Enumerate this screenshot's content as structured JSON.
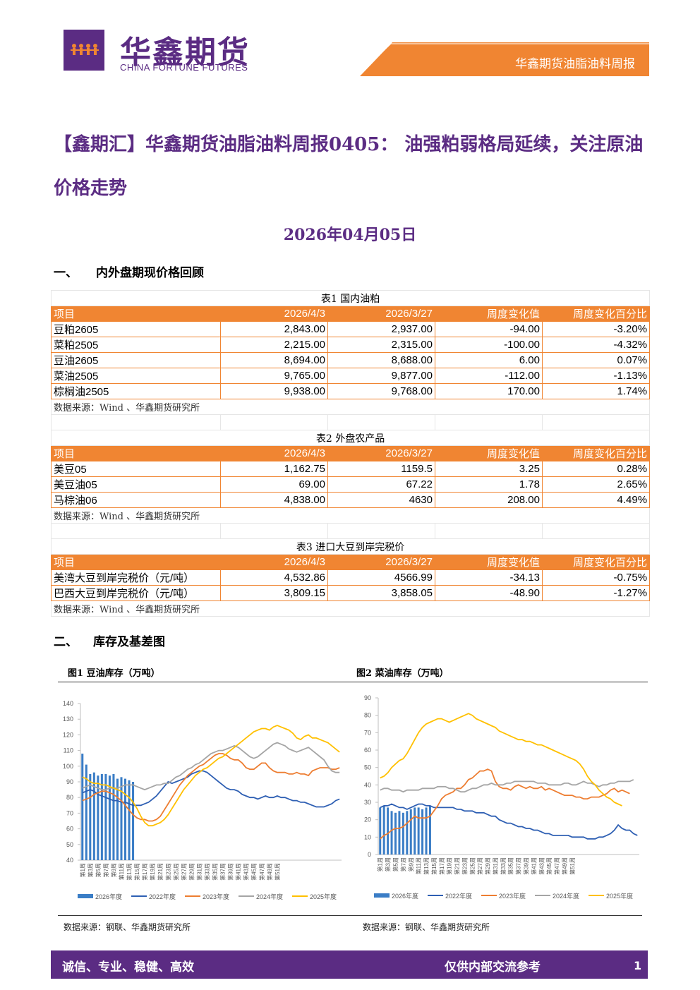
{
  "header": {
    "logo_cn": "华鑫期货",
    "logo_en": "CHINA FORTUNE FUTURES",
    "report_name": "华鑫期货油脂油料周报",
    "brand_color": "#5b2c83",
    "accent_color": "#f08532"
  },
  "title": "【鑫期汇】华鑫期货油脂油料周报0405： 油强粕弱格局延续，关注原油价格走势",
  "date": "2026年04月05日",
  "section1": {
    "num": "一、",
    "title": "内外盘期现价格回顾"
  },
  "section2": {
    "num": "二、",
    "title": "库存及基差图"
  },
  "tables": [
    {
      "caption": "表1 国内油粕",
      "headers": [
        "项目",
        "2026/4/3",
        "2026/3/27",
        "周度变化值",
        "周度变化百分比"
      ],
      "rows": [
        [
          "豆粕2605",
          "2,843.00",
          "2,937.00",
          "-94.00",
          "-3.20%"
        ],
        [
          "菜粕2505",
          "2,215.00",
          "2,315.00",
          "-100.00",
          "-4.32%"
        ],
        [
          "豆油2605",
          "8,694.00",
          "8,688.00",
          "6.00",
          "0.07%"
        ],
        [
          "菜油2505",
          "9,765.00",
          "9,877.00",
          "-112.00",
          "-1.13%"
        ],
        [
          "棕榈油2505",
          "9,938.00",
          "9,768.00",
          "170.00",
          "1.74%"
        ]
      ],
      "source": "数据来源：Wind 、华鑫期货研究所"
    },
    {
      "caption": "表2 外盘农产品",
      "headers": [
        "项目",
        "2026/4/3",
        "2026/3/27",
        "周度变化值",
        "周度变化百分比"
      ],
      "rows": [
        [
          "美豆05",
          "1,162.75",
          "1159.5",
          "3.25",
          "0.28%"
        ],
        [
          "美豆油05",
          "69.00",
          "67.22",
          "1.78",
          "2.65%"
        ],
        [
          "马棕油06",
          "4,838.00",
          "4630",
          "208.00",
          "4.49%"
        ]
      ],
      "source": "数据来源：Wind 、华鑫期货研究所"
    },
    {
      "caption": "表3 进口大豆到岸完税价",
      "headers": [
        "项目",
        "2026/4/3",
        "2026/3/27",
        "周度变化值",
        "周度变化百分比"
      ],
      "rows": [
        [
          "美湾大豆到岸完税价（元/吨）",
          "4,532.86",
          "4566.99",
          "-34.13",
          "-0.75%"
        ],
        [
          "巴西大豆到岸完税价（元/吨）",
          "3,809.15",
          "3,858.05",
          "-48.90",
          "-1.27%"
        ]
      ],
      "source": "数据来源：Wind 、华鑫期货研究所"
    }
  ],
  "charts_meta": {
    "fig1_title": "图1 豆油库存（万吨）",
    "fig2_title": "图2 菜油库存（万吨）",
    "fig1_source": "数据来源：钢联、华鑫期货研究所",
    "fig2_source": "数据来源：钢联、华鑫期货研究所"
  },
  "chart_data": [
    {
      "type": "line",
      "title": "图1 豆油库存（万吨）",
      "ylim": [
        40,
        140
      ],
      "yticks": [
        40,
        50,
        60,
        70,
        80,
        90,
        100,
        110,
        120,
        130,
        140
      ],
      "x_ticks": [
        "第1周",
        "第3周",
        "第5周",
        "第7周",
        "第9周",
        "第11周",
        "第13周",
        "第15周",
        "第17周",
        "第19周",
        "第21周",
        "第23周",
        "第25周",
        "第27周",
        "第29周",
        "第31周",
        "第33周",
        "第35周",
        "第37周",
        "第39周",
        "第41周",
        "第43周",
        "第45周",
        "第47周",
        "第49周",
        "第51周"
      ],
      "legend_position": "bottom",
      "series": [
        {
          "name": "2026年度",
          "kind": "bar",
          "color": "#3a7dc6",
          "values": [
            108,
            101,
            95,
            96,
            94,
            95,
            95,
            94,
            95,
            92,
            93,
            92,
            91,
            90
          ]
        },
        {
          "name": "2022年度",
          "color": "#2e5fb3",
          "values": [
            83,
            84,
            85,
            84,
            82,
            81,
            80,
            79,
            78,
            78,
            77,
            77,
            76,
            75,
            75,
            75,
            76,
            77,
            79,
            81,
            84,
            87,
            90,
            89,
            90,
            91,
            92,
            93,
            95,
            96,
            97,
            97,
            96,
            94,
            92,
            90,
            88,
            86,
            85,
            85,
            84,
            82,
            81,
            80,
            80,
            79,
            80,
            81,
            80,
            80,
            81,
            80,
            80,
            79,
            78,
            78,
            77,
            77,
            76,
            75,
            74,
            74,
            74,
            75,
            76,
            78,
            79
          ]
        },
        {
          "name": "2023年度",
          "color": "#ed7d31",
          "values": [
            78,
            79,
            80,
            82,
            83,
            84,
            84,
            83,
            82,
            80,
            78,
            75,
            72,
            69,
            67,
            66,
            66,
            65,
            65,
            66,
            68,
            72,
            76,
            80,
            84,
            88,
            91,
            94,
            96,
            98,
            100,
            101,
            103,
            105,
            107,
            108,
            108,
            107,
            105,
            104,
            104,
            102,
            99,
            98,
            98,
            100,
            102,
            102,
            99,
            97,
            96,
            96,
            96,
            95,
            95,
            96,
            95,
            95,
            94,
            97,
            98,
            99,
            99,
            99,
            98,
            98,
            99
          ]
        },
        {
          "name": "2024年度",
          "color": "#a5a5a5",
          "values": [
            86,
            87,
            88,
            87,
            86,
            85,
            85,
            86,
            86,
            86,
            87,
            88,
            88,
            88,
            87,
            86,
            85,
            86,
            87,
            88,
            88,
            89,
            89,
            91,
            93,
            94,
            96,
            98,
            99,
            101,
            102,
            104,
            106,
            108,
            109,
            110,
            110,
            111,
            112,
            113,
            112,
            110,
            108,
            106,
            105,
            106,
            108,
            110,
            112,
            114,
            115,
            114,
            113,
            111,
            110,
            109,
            110,
            111,
            112,
            110,
            108,
            106,
            104,
            100,
            97,
            96,
            96
          ]
        },
        {
          "name": "2025年度",
          "color": "#ffc000",
          "values": [
            93,
            92,
            90,
            89,
            89,
            88,
            88,
            87,
            86,
            85,
            84,
            82,
            80,
            77,
            73,
            68,
            64,
            62,
            62,
            63,
            64,
            66,
            69,
            73,
            77,
            81,
            85,
            88,
            91,
            94,
            96,
            98,
            99,
            101,
            103,
            105,
            106,
            108,
            110,
            112,
            114,
            116,
            118,
            120,
            122,
            123,
            124,
            124,
            123,
            125,
            126,
            125,
            124,
            123,
            121,
            118,
            117,
            119,
            120,
            118,
            118,
            117,
            116,
            115,
            113,
            111,
            109
          ]
        }
      ]
    },
    {
      "type": "line",
      "title": "图2 菜油库存（万吨）",
      "ylim": [
        0,
        90
      ],
      "yticks": [
        0,
        10,
        20,
        30,
        40,
        50,
        60,
        70,
        80,
        90
      ],
      "x_ticks": [
        "第1周",
        "第3周",
        "第5周",
        "第7周",
        "第9周",
        "第11周",
        "第13周",
        "第15周",
        "第17周",
        "第19周",
        "第21周",
        "第23周",
        "第25周",
        "第27周",
        "第29周",
        "第31周",
        "第33周",
        "第35周",
        "第37周",
        "第39周",
        "第41周",
        "第43周",
        "第45周",
        "第47周",
        "第49周",
        "第51周"
      ],
      "legend_position": "bottom",
      "series": [
        {
          "name": "2026年度",
          "kind": "bar",
          "color": "#3a7dc6",
          "values": [
            27,
            28,
            27,
            25,
            24,
            25,
            24,
            25,
            26,
            27,
            27,
            26,
            27,
            28
          ]
        },
        {
          "name": "2022年度",
          "color": "#2e5fb3",
          "values": [
            27,
            28,
            28,
            29,
            28,
            27,
            27,
            26,
            27,
            28,
            29,
            29,
            28,
            28,
            27,
            27,
            27,
            27,
            27,
            27,
            26,
            26,
            25,
            25,
            25,
            24,
            24,
            24,
            23,
            22,
            22,
            20,
            19,
            18,
            18,
            17,
            16,
            16,
            15,
            15,
            14,
            14,
            13,
            12,
            12,
            11,
            11,
            11,
            11,
            11,
            10,
            10,
            10,
            10,
            9,
            9,
            9,
            10,
            10,
            11,
            12,
            14,
            17,
            15,
            14,
            14,
            12,
            11
          ]
        },
        {
          "name": "2023年度",
          "color": "#ed7d31",
          "values": [
            9,
            11,
            12,
            14,
            15,
            15,
            16,
            18,
            20,
            22,
            21,
            21,
            21,
            22,
            25,
            28,
            32,
            34,
            35,
            36,
            38,
            38,
            40,
            43,
            44,
            46,
            48,
            48,
            49,
            48,
            42,
            39,
            38,
            38,
            37,
            39,
            40,
            39,
            38,
            39,
            38,
            38,
            39,
            37,
            38,
            37,
            36,
            35,
            34,
            34,
            34,
            33,
            33,
            32,
            32,
            33,
            33,
            33,
            34,
            35,
            37,
            38,
            36,
            37,
            36,
            35
          ]
        },
        {
          "name": "2024年度",
          "color": "#a5a5a5",
          "values": [
            37,
            38,
            38,
            37,
            37,
            37,
            36,
            37,
            37,
            37,
            37,
            38,
            38,
            38,
            38,
            39,
            39,
            39,
            38,
            38,
            37,
            36,
            36,
            37,
            38,
            38,
            39,
            40,
            40,
            41,
            40,
            40,
            40,
            41,
            41,
            42,
            42,
            42,
            42,
            42,
            42,
            41,
            41,
            41,
            40,
            40,
            40,
            40,
            41,
            41,
            40,
            40,
            41,
            42,
            41,
            41,
            40,
            39,
            40,
            40,
            41,
            41,
            42,
            42,
            42,
            42,
            43
          ]
        },
        {
          "name": "2025年度",
          "color": "#ffc000",
          "values": [
            44,
            45,
            47,
            50,
            52,
            54,
            55,
            58,
            62,
            66,
            70,
            73,
            75,
            76,
            77,
            78,
            78,
            77,
            76,
            77,
            78,
            79,
            80,
            81,
            80,
            78,
            77,
            76,
            75,
            74,
            73,
            71,
            70,
            69,
            68,
            67,
            66,
            66,
            65,
            65,
            64,
            63,
            63,
            62,
            61,
            60,
            59,
            58,
            57,
            56,
            55,
            54,
            52,
            49,
            45,
            42,
            40,
            37,
            35,
            33,
            32,
            30,
            29,
            28
          ]
        }
      ]
    }
  ],
  "footer": {
    "left": "诚信、专业、稳健、高效",
    "right": "仅供内部交流参考",
    "page": "1"
  }
}
